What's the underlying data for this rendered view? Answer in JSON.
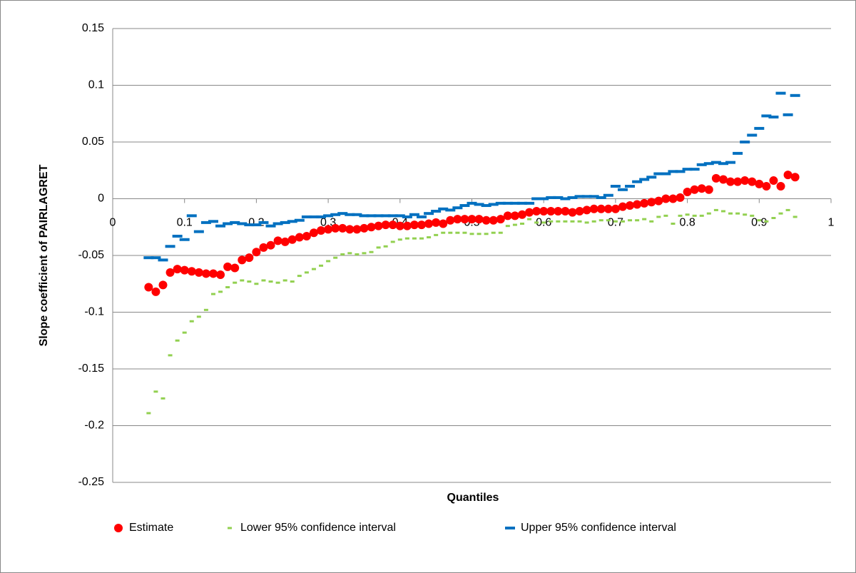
{
  "chart_data": {
    "type": "scatter",
    "x_label": "Quantiles",
    "y_label": "Slope coefficient of PAIRLAGRET",
    "x": [
      0.05,
      0.06,
      0.07,
      0.08,
      0.09,
      0.1,
      0.11,
      0.12,
      0.13,
      0.14,
      0.15,
      0.16,
      0.17,
      0.18,
      0.19,
      0.2,
      0.21,
      0.22,
      0.23,
      0.24,
      0.25,
      0.26,
      0.27,
      0.28,
      0.29,
      0.3,
      0.31,
      0.32,
      0.33,
      0.34,
      0.35,
      0.36,
      0.37,
      0.38,
      0.39,
      0.4,
      0.41,
      0.42,
      0.43,
      0.44,
      0.45,
      0.46,
      0.47,
      0.48,
      0.49,
      0.5,
      0.51,
      0.52,
      0.53,
      0.54,
      0.55,
      0.56,
      0.57,
      0.58,
      0.59,
      0.6,
      0.61,
      0.62,
      0.63,
      0.64,
      0.65,
      0.66,
      0.67,
      0.68,
      0.69,
      0.7,
      0.71,
      0.72,
      0.73,
      0.74,
      0.75,
      0.76,
      0.77,
      0.78,
      0.79,
      0.8,
      0.81,
      0.82,
      0.83,
      0.84,
      0.85,
      0.86,
      0.87,
      0.88,
      0.89,
      0.9,
      0.91,
      0.92,
      0.93,
      0.94,
      0.95
    ],
    "series": [
      {
        "name": "Estimate",
        "color": "#ff0000",
        "marker": "circle",
        "values": [
          -0.078,
          -0.082,
          -0.076,
          -0.065,
          -0.062,
          -0.063,
          -0.064,
          -0.065,
          -0.066,
          -0.066,
          -0.067,
          -0.06,
          -0.061,
          -0.054,
          -0.052,
          -0.047,
          -0.043,
          -0.041,
          -0.037,
          -0.038,
          -0.036,
          -0.034,
          -0.033,
          -0.03,
          -0.028,
          -0.027,
          -0.026,
          -0.026,
          -0.027,
          -0.027,
          -0.026,
          -0.025,
          -0.024,
          -0.023,
          -0.023,
          -0.024,
          -0.024,
          -0.023,
          -0.023,
          -0.022,
          -0.021,
          -0.022,
          -0.019,
          -0.018,
          -0.018,
          -0.018,
          -0.018,
          -0.019,
          -0.019,
          -0.018,
          -0.015,
          -0.015,
          -0.014,
          -0.012,
          -0.011,
          -0.011,
          -0.011,
          -0.011,
          -0.011,
          -0.012,
          -0.011,
          -0.01,
          -0.009,
          -0.009,
          -0.009,
          -0.009,
          -0.007,
          -0.006,
          -0.005,
          -0.004,
          -0.003,
          -0.002,
          0.0,
          0.0,
          0.001,
          0.006,
          0.008,
          0.009,
          0.008,
          0.018,
          0.017,
          0.015,
          0.015,
          0.016,
          0.015,
          0.013,
          0.011,
          0.016,
          0.011,
          0.021,
          0.019
        ]
      },
      {
        "name": "Lower 95% confidence interval",
        "color": "#92d050",
        "marker": "small-dash",
        "values": [
          -0.189,
          -0.17,
          -0.176,
          -0.138,
          -0.125,
          -0.118,
          -0.108,
          -0.104,
          -0.098,
          -0.084,
          -0.082,
          -0.078,
          -0.074,
          -0.072,
          -0.073,
          -0.075,
          -0.072,
          -0.073,
          -0.074,
          -0.072,
          -0.073,
          -0.068,
          -0.065,
          -0.062,
          -0.059,
          -0.055,
          -0.052,
          -0.049,
          -0.048,
          -0.049,
          -0.048,
          -0.047,
          -0.043,
          -0.042,
          -0.038,
          -0.036,
          -0.035,
          -0.035,
          -0.035,
          -0.034,
          -0.032,
          -0.03,
          -0.03,
          -0.03,
          -0.03,
          -0.031,
          -0.031,
          -0.031,
          -0.03,
          -0.03,
          -0.024,
          -0.023,
          -0.022,
          -0.018,
          -0.021,
          -0.021,
          -0.02,
          -0.02,
          -0.02,
          -0.02,
          -0.02,
          -0.021,
          -0.02,
          -0.019,
          -0.019,
          -0.02,
          -0.02,
          -0.019,
          -0.019,
          -0.018,
          -0.02,
          -0.016,
          -0.015,
          -0.022,
          -0.015,
          -0.014,
          -0.015,
          -0.015,
          -0.013,
          -0.01,
          -0.011,
          -0.013,
          -0.013,
          -0.014,
          -0.015,
          -0.019,
          -0.02,
          -0.017,
          -0.013,
          -0.01,
          -0.016
        ]
      },
      {
        "name": "Upper 95% confidence interval",
        "color": "#0070c0",
        "marker": "dash",
        "values": [
          -0.052,
          -0.052,
          -0.054,
          -0.042,
          -0.033,
          -0.036,
          -0.015,
          -0.029,
          -0.021,
          -0.02,
          -0.024,
          -0.022,
          -0.021,
          -0.022,
          -0.023,
          -0.023,
          -0.021,
          -0.024,
          -0.022,
          -0.021,
          -0.02,
          -0.019,
          -0.016,
          -0.016,
          -0.016,
          -0.015,
          -0.014,
          -0.013,
          -0.014,
          -0.014,
          -0.015,
          -0.015,
          -0.015,
          -0.015,
          -0.015,
          -0.015,
          -0.016,
          -0.014,
          -0.016,
          -0.013,
          -0.011,
          -0.009,
          -0.01,
          -0.008,
          -0.006,
          -0.004,
          -0.005,
          -0.006,
          -0.005,
          -0.004,
          -0.004,
          -0.004,
          -0.004,
          -0.004,
          0.0,
          0.0,
          0.001,
          0.001,
          0.0,
          0.001,
          0.002,
          0.002,
          0.002,
          0.001,
          0.003,
          0.011,
          0.008,
          0.011,
          0.015,
          0.017,
          0.019,
          0.022,
          0.022,
          0.024,
          0.024,
          0.026,
          0.026,
          0.03,
          0.031,
          0.032,
          0.031,
          0.032,
          0.04,
          0.05,
          0.056,
          0.062,
          0.073,
          0.072,
          0.093,
          0.074,
          0.091
        ]
      }
    ],
    "xlim": [
      0,
      1
    ],
    "xticks": [
      0,
      0.1,
      0.2,
      0.3,
      0.4,
      0.5,
      0.6,
      0.7,
      0.8,
      0.9,
      1
    ],
    "ylim": [
      -0.25,
      0.15
    ],
    "yticks": [
      0.15,
      0.1,
      0.05,
      0,
      -0.05,
      -0.1,
      -0.15,
      -0.2,
      -0.25
    ],
    "grid": true,
    "legend": "bottom"
  }
}
